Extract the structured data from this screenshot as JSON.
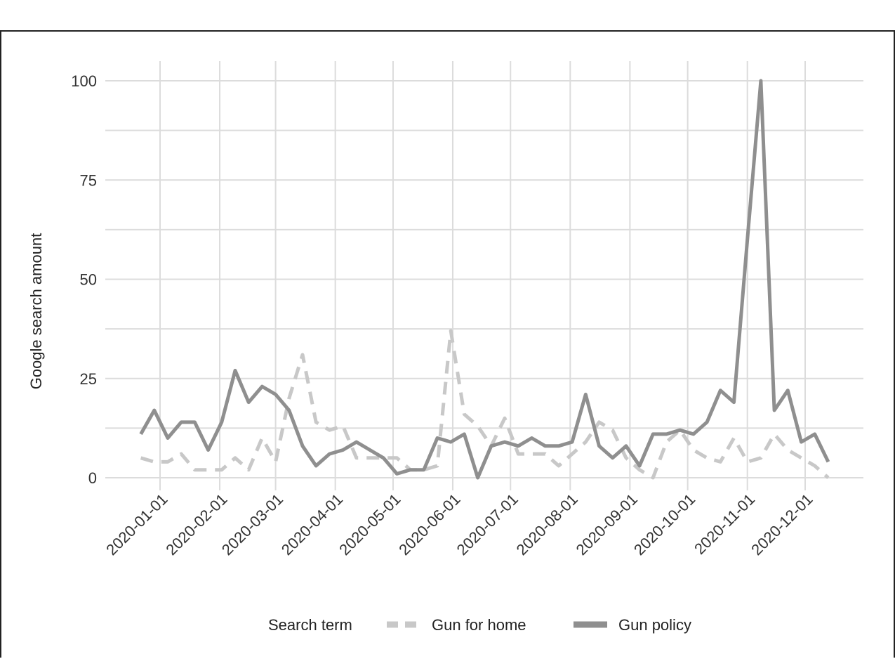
{
  "chart_data": {
    "type": "line",
    "title": "",
    "xlabel": "",
    "ylabel": "Google search amount",
    "ylim": [
      0,
      100
    ],
    "y_ticks": [
      0,
      25,
      50,
      75,
      100
    ],
    "x_ticks": [
      "2020-01-01",
      "2020-02-01",
      "2020-03-01",
      "2020-04-01",
      "2020-05-01",
      "2020-06-01",
      "2020-07-01",
      "2020-08-01",
      "2020-09-01",
      "2020-10-01",
      "2020-11-01",
      "2020-12-01"
    ],
    "grid": true,
    "legend": {
      "title": "Search term",
      "placement": "bottom"
    },
    "x": [
      "2019-12-22",
      "2019-12-29",
      "2020-01-05",
      "2020-01-12",
      "2020-01-19",
      "2020-01-26",
      "2020-02-02",
      "2020-02-09",
      "2020-02-16",
      "2020-02-23",
      "2020-03-01",
      "2020-03-08",
      "2020-03-15",
      "2020-03-22",
      "2020-03-29",
      "2020-04-05",
      "2020-04-12",
      "2020-04-19",
      "2020-04-26",
      "2020-05-03",
      "2020-05-10",
      "2020-05-17",
      "2020-05-24",
      "2020-05-31",
      "2020-06-07",
      "2020-06-14",
      "2020-06-21",
      "2020-06-28",
      "2020-07-05",
      "2020-07-12",
      "2020-07-19",
      "2020-07-26",
      "2020-08-02",
      "2020-08-09",
      "2020-08-16",
      "2020-08-23",
      "2020-08-30",
      "2020-09-06",
      "2020-09-13",
      "2020-09-20",
      "2020-09-27",
      "2020-10-04",
      "2020-10-11",
      "2020-10-18",
      "2020-10-25",
      "2020-11-01",
      "2020-11-08",
      "2020-11-15",
      "2020-11-22",
      "2020-11-29",
      "2020-12-06",
      "2020-12-13"
    ],
    "series": [
      {
        "name": "Gun for home",
        "style": "dashed",
        "color": "#c8c8c8",
        "values": [
          5,
          4,
          4,
          6,
          2,
          2,
          2,
          5,
          2,
          10,
          4,
          20,
          31,
          14,
          12,
          13,
          5,
          5,
          5,
          5,
          2,
          2,
          3,
          37,
          16,
          13,
          8,
          15,
          6,
          6,
          6,
          3,
          6,
          9,
          14,
          12,
          5,
          2,
          0,
          9,
          12,
          7,
          5,
          4,
          10,
          4,
          5,
          11,
          7,
          5,
          3,
          0
        ]
      },
      {
        "name": "Gun policy",
        "style": "solid",
        "color": "#8f8f8f",
        "values": [
          11,
          17,
          10,
          14,
          14,
          7,
          14,
          27,
          19,
          23,
          21,
          17,
          8,
          3,
          6,
          7,
          9,
          7,
          5,
          1,
          2,
          2,
          10,
          9,
          11,
          0,
          8,
          9,
          8,
          10,
          8,
          8,
          9,
          21,
          8,
          5,
          8,
          3,
          11,
          11,
          12,
          11,
          14,
          22,
          19,
          60,
          100,
          17,
          22,
          9,
          11,
          4
        ]
      }
    ]
  }
}
